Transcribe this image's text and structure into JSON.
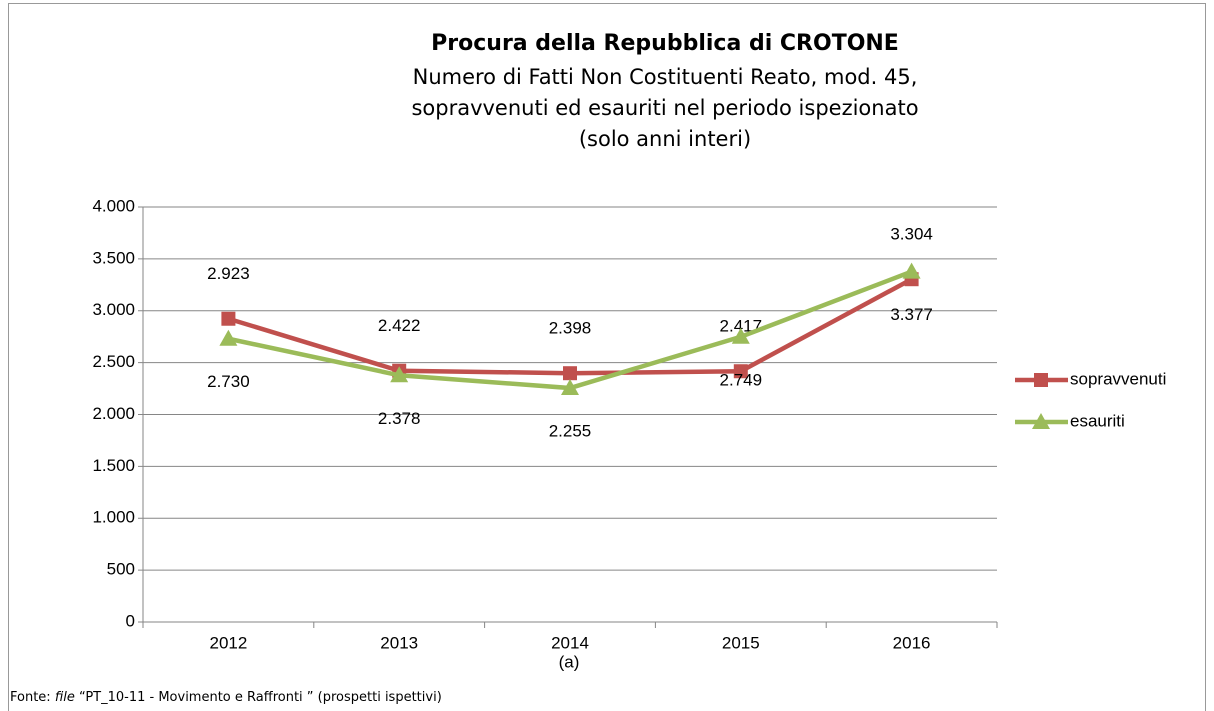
{
  "chart_data": {
    "type": "line",
    "title": "Procura della Repubblica di CROTONE",
    "subtitle": [
      "Numero di Fatti Non Costituenti Reato, mod. 45,",
      "sopravvenuti ed esauriti nel periodo ispezionato",
      "(solo anni interi)"
    ],
    "x_label": "(a)",
    "categories": [
      "2012",
      "2013",
      "2014",
      "2015",
      "2016"
    ],
    "series": [
      {
        "name": "sopravvenuti",
        "color": "#c0504d",
        "marker": "square",
        "values": [
          2923,
          2422,
          2398,
          2417,
          3304
        ],
        "value_labels": [
          "2.923",
          "2.422",
          "2.398",
          "2.417",
          "3.304"
        ]
      },
      {
        "name": "esauriti",
        "color": "#9bbb59",
        "marker": "triangle",
        "values": [
          2730,
          2378,
          2255,
          2749,
          3377
        ],
        "value_labels": [
          "2.730",
          "2.378",
          "2.255",
          "2.749",
          "3.377"
        ]
      }
    ],
    "ylim": [
      0,
      4000
    ],
    "yticks": [
      0,
      500,
      {
        "value": 1000,
        "label": "1.000"
      },
      {
        "value": 1500,
        "label": "1.500"
      },
      {
        "value": 2000,
        "label": "2.000"
      },
      {
        "value": 2500,
        "label": "2.500"
      },
      {
        "value": 3000,
        "label": "3.000"
      },
      {
        "value": 3500,
        "label": "3.500"
      },
      {
        "value": 4000,
        "label": "4.000"
      }
    ],
    "grid": true,
    "legend": "right"
  },
  "footer": {
    "prefix": "Fonte:",
    "italic": "file",
    "rest": "“PT_10-11 - Movimento e Raffronti ” (prospetti ispettivi)"
  }
}
